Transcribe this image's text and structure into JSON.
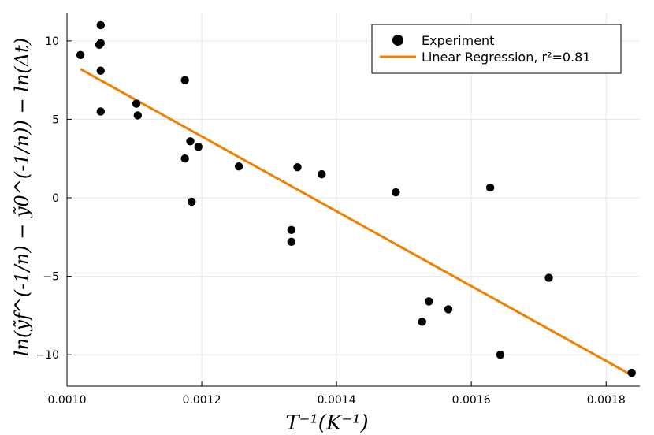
{
  "chart_data": {
    "type": "scatter",
    "title": "",
    "xlabel": "T⁻¹(K⁻¹)",
    "ylabel": "ln(ỹf^(-1/n) − ỹ0^(-1/n)) − ln(Δt)",
    "xlim": [
      0.001,
      0.00185
    ],
    "ylim": [
      -12,
      11.8
    ],
    "xticks": [
      0.001,
      0.0012,
      0.0014,
      0.0016,
      0.0018
    ],
    "xtick_labels": [
      "0.0010",
      "0.0012",
      "0.0014",
      "0.0016",
      "0.0018"
    ],
    "yticks": [
      -10,
      -5,
      0,
      5,
      10
    ],
    "ytick_labels": [
      "−10",
      "−5",
      "0",
      "5",
      "10"
    ],
    "grid": true,
    "legend_position": "top-right",
    "series": [
      {
        "name": "Experiment",
        "kind": "scatter",
        "color": "#000000",
        "points": [
          [
            0.00102,
            9.1
          ],
          [
            0.00105,
            11.0
          ],
          [
            0.001048,
            9.75
          ],
          [
            0.00105,
            9.85
          ],
          [
            0.00105,
            8.1
          ],
          [
            0.00105,
            5.5
          ],
          [
            0.001103,
            6.0
          ],
          [
            0.001105,
            5.25
          ],
          [
            0.001175,
            7.5
          ],
          [
            0.001175,
            2.5
          ],
          [
            0.001183,
            3.6
          ],
          [
            0.001195,
            3.25
          ],
          [
            0.001185,
            -0.25
          ],
          [
            0.001255,
            2.0
          ],
          [
            0.001333,
            -2.05
          ],
          [
            0.001333,
            -2.8
          ],
          [
            0.001342,
            1.95
          ],
          [
            0.001378,
            1.5
          ],
          [
            0.001488,
            0.35
          ],
          [
            0.001527,
            -7.9
          ],
          [
            0.001537,
            -6.6
          ],
          [
            0.001566,
            -7.1
          ],
          [
            0.001628,
            0.65
          ],
          [
            0.001643,
            -10.0
          ],
          [
            0.001715,
            -5.1
          ],
          [
            0.001838,
            -11.15
          ]
        ]
      },
      {
        "name": "Linear Regression, r²=0.81",
        "kind": "line",
        "color": "#f28000",
        "points": [
          [
            0.00102,
            8.2
          ],
          [
            0.001838,
            -11.3
          ]
        ]
      }
    ]
  }
}
